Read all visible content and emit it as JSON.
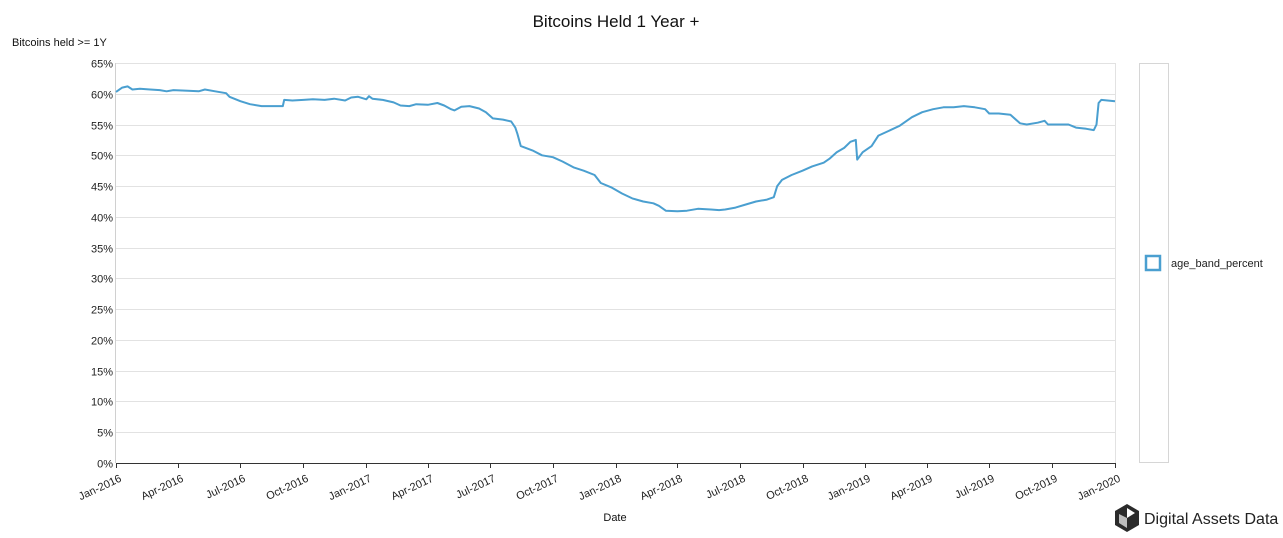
{
  "chart_data": {
    "type": "line",
    "title": "Bitcoins Held 1 Year +",
    "ylabel": "Bitcoins held >= 1Y",
    "xlabel": "Date",
    "ylim": [
      0,
      65
    ],
    "y_ticks": [
      "0%",
      "5%",
      "10%",
      "15%",
      "20%",
      "25%",
      "30%",
      "35%",
      "40%",
      "45%",
      "50%",
      "55%",
      "60%",
      "65%"
    ],
    "x_ticks": [
      "Jan-2016",
      "Apr-2016",
      "Jul-2016",
      "Oct-2016",
      "Jan-2017",
      "Apr-2017",
      "Jul-2017",
      "Oct-2017",
      "Jan-2018",
      "Apr-2018",
      "Jul-2018",
      "Oct-2018",
      "Jan-2019",
      "Apr-2019",
      "Jul-2019",
      "Oct-2019",
      "Jan-2020"
    ],
    "x_range": [
      "2016-01-01",
      "2020-01-01"
    ],
    "grid": true,
    "legend_position": "right",
    "series": [
      {
        "name": "age_band_percent",
        "color": "#4a9fd0",
        "points": [
          [
            "2016-01-01",
            60.3
          ],
          [
            "2016-01-10",
            61.0
          ],
          [
            "2016-01-18",
            61.2
          ],
          [
            "2016-01-25",
            60.7
          ],
          [
            "2016-02-05",
            60.8
          ],
          [
            "2016-02-20",
            60.7
          ],
          [
            "2016-03-05",
            60.6
          ],
          [
            "2016-03-15",
            60.4
          ],
          [
            "2016-03-25",
            60.6
          ],
          [
            "2016-04-15",
            60.5
          ],
          [
            "2016-05-01",
            60.4
          ],
          [
            "2016-05-10",
            60.7
          ],
          [
            "2016-05-25",
            60.4
          ],
          [
            "2016-06-10",
            60.1
          ],
          [
            "2016-06-15",
            59.5
          ],
          [
            "2016-07-01",
            58.8
          ],
          [
            "2016-07-15",
            58.3
          ],
          [
            "2016-08-01",
            58.0
          ],
          [
            "2016-08-15",
            58.0
          ],
          [
            "2016-09-01",
            58.0
          ],
          [
            "2016-09-03",
            59.0
          ],
          [
            "2016-09-15",
            58.9
          ],
          [
            "2016-10-01",
            59.0
          ],
          [
            "2016-10-15",
            59.1
          ],
          [
            "2016-11-01",
            59.0
          ],
          [
            "2016-11-15",
            59.2
          ],
          [
            "2016-12-01",
            58.9
          ],
          [
            "2016-12-10",
            59.4
          ],
          [
            "2016-12-20",
            59.5
          ],
          [
            "2017-01-01",
            59.1
          ],
          [
            "2017-01-05",
            59.6
          ],
          [
            "2017-01-10",
            59.2
          ],
          [
            "2017-01-25",
            59.0
          ],
          [
            "2017-02-10",
            58.6
          ],
          [
            "2017-02-20",
            58.1
          ],
          [
            "2017-03-05",
            58.0
          ],
          [
            "2017-03-15",
            58.3
          ],
          [
            "2017-04-01",
            58.2
          ],
          [
            "2017-04-15",
            58.5
          ],
          [
            "2017-04-25",
            58.1
          ],
          [
            "2017-05-05",
            57.5
          ],
          [
            "2017-05-10",
            57.3
          ],
          [
            "2017-05-20",
            57.9
          ],
          [
            "2017-06-01",
            58.0
          ],
          [
            "2017-06-15",
            57.6
          ],
          [
            "2017-06-25",
            57.0
          ],
          [
            "2017-07-05",
            56.0
          ],
          [
            "2017-07-20",
            55.8
          ],
          [
            "2017-08-01",
            55.5
          ],
          [
            "2017-08-07",
            54.5
          ],
          [
            "2017-08-10",
            53.5
          ],
          [
            "2017-08-15",
            51.5
          ],
          [
            "2017-09-01",
            50.8
          ],
          [
            "2017-09-15",
            50.0
          ],
          [
            "2017-10-01",
            49.7
          ],
          [
            "2017-10-15",
            49.0
          ],
          [
            "2017-11-01",
            48.0
          ],
          [
            "2017-11-15",
            47.5
          ],
          [
            "2017-12-01",
            46.8
          ],
          [
            "2017-12-10",
            45.5
          ],
          [
            "2017-12-25",
            44.8
          ],
          [
            "2018-01-10",
            43.8
          ],
          [
            "2018-01-25",
            43.0
          ],
          [
            "2018-02-10",
            42.5
          ],
          [
            "2018-02-25",
            42.2
          ],
          [
            "2018-03-05",
            41.8
          ],
          [
            "2018-03-15",
            41.0
          ],
          [
            "2018-04-01",
            40.9
          ],
          [
            "2018-04-15",
            41.0
          ],
          [
            "2018-05-01",
            41.3
          ],
          [
            "2018-05-20",
            41.2
          ],
          [
            "2018-06-01",
            41.1
          ],
          [
            "2018-06-10",
            41.2
          ],
          [
            "2018-06-25",
            41.5
          ],
          [
            "2018-07-10",
            42.0
          ],
          [
            "2018-07-25",
            42.5
          ],
          [
            "2018-08-10",
            42.8
          ],
          [
            "2018-08-20",
            43.2
          ],
          [
            "2018-08-25",
            45.0
          ],
          [
            "2018-09-01",
            46.0
          ],
          [
            "2018-09-15",
            46.8
          ],
          [
            "2018-10-01",
            47.5
          ],
          [
            "2018-10-15",
            48.2
          ],
          [
            "2018-11-01",
            48.8
          ],
          [
            "2018-11-10",
            49.5
          ],
          [
            "2018-11-20",
            50.5
          ],
          [
            "2018-12-01",
            51.2
          ],
          [
            "2018-12-10",
            52.2
          ],
          [
            "2018-12-18",
            52.5
          ],
          [
            "2018-12-20",
            49.3
          ],
          [
            "2018-12-28",
            50.5
          ],
          [
            "2019-01-10",
            51.5
          ],
          [
            "2019-01-20",
            53.2
          ],
          [
            "2019-02-01",
            53.8
          ],
          [
            "2019-02-20",
            54.8
          ],
          [
            "2019-03-10",
            56.2
          ],
          [
            "2019-03-25",
            57.0
          ],
          [
            "2019-04-10",
            57.5
          ],
          [
            "2019-04-25",
            57.8
          ],
          [
            "2019-05-10",
            57.8
          ],
          [
            "2019-05-25",
            58.0
          ],
          [
            "2019-06-10",
            57.8
          ],
          [
            "2019-06-25",
            57.5
          ],
          [
            "2019-07-01",
            56.8
          ],
          [
            "2019-07-15",
            56.8
          ],
          [
            "2019-08-01",
            56.6
          ],
          [
            "2019-08-15",
            55.2
          ],
          [
            "2019-08-25",
            55.0
          ],
          [
            "2019-09-10",
            55.3
          ],
          [
            "2019-09-20",
            55.6
          ],
          [
            "2019-09-25",
            55.0
          ],
          [
            "2019-10-10",
            55.0
          ],
          [
            "2019-10-25",
            55.0
          ],
          [
            "2019-11-05",
            54.5
          ],
          [
            "2019-11-20",
            54.3
          ],
          [
            "2019-12-01",
            54.1
          ],
          [
            "2019-12-05",
            55.0
          ],
          [
            "2019-12-08",
            58.5
          ],
          [
            "2019-12-12",
            59.0
          ],
          [
            "2020-01-01",
            58.8
          ]
        ]
      }
    ]
  },
  "legend": {
    "label": "age_band_percent"
  },
  "brand": {
    "name": "Digital Assets Data"
  }
}
